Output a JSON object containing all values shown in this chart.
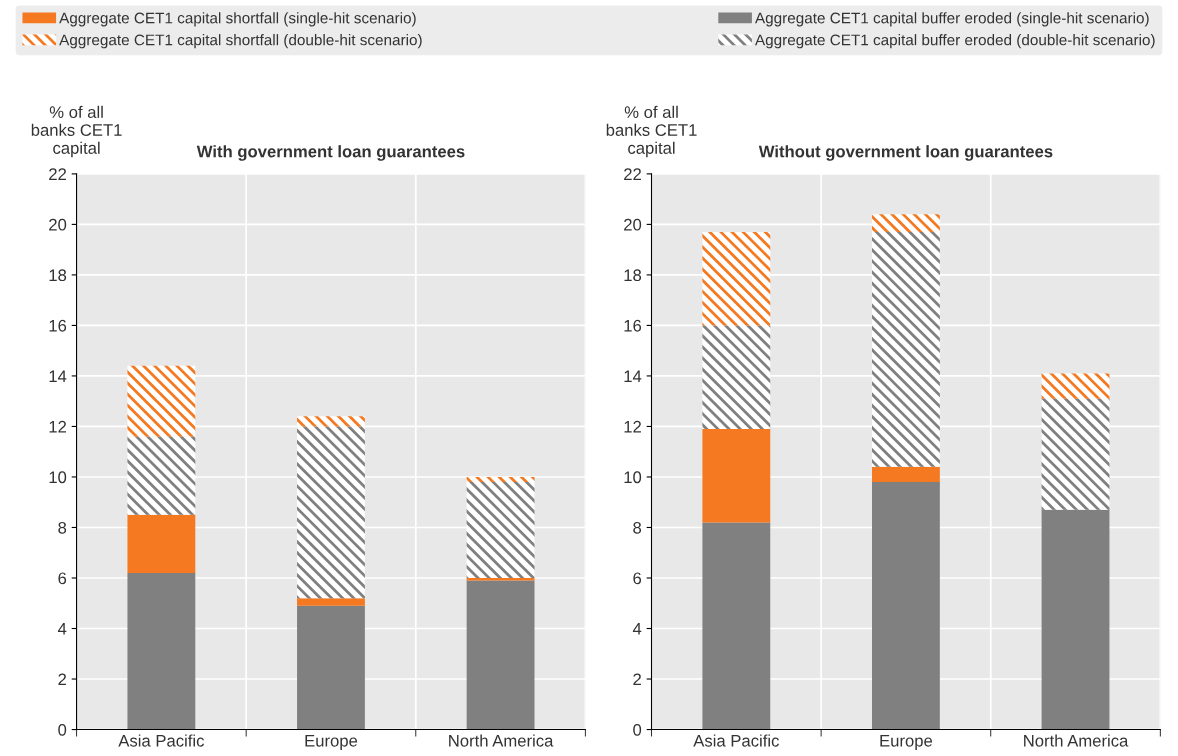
{
  "chart_data": [
    {
      "type": "bar",
      "stacked": true,
      "title": "With government loan guarantees",
      "ylabel": "% of all\nbanks CET1\ncapital",
      "categories": [
        "Asia Pacific",
        "Europe",
        "North America"
      ],
      "ylim": [
        0,
        22
      ],
      "yticks": [
        0,
        2,
        4,
        6,
        8,
        10,
        12,
        14,
        16,
        18,
        20,
        22
      ],
      "grid": true,
      "legend": "top",
      "series": [
        {
          "name": "Aggregate CET1 capital buffer eroded (single-hit scenario)",
          "color": "#808080",
          "values": [
            6.2,
            4.9,
            5.9
          ]
        },
        {
          "name": "Aggregate CET1 capital shortfall (single-hit scenario)",
          "color": "#f47920",
          "values": [
            2.3,
            0.3,
            0.1
          ]
        },
        {
          "name": "Aggregate CET1 capital buffer eroded (double-hit scenario)",
          "color": "#808080",
          "values": [
            3.1,
            6.8,
            3.8
          ]
        },
        {
          "name": "Aggregate CET1 capital shortfall (double-hit scenario)",
          "color": "#f47920",
          "values": [
            2.8,
            0.4,
            0.2
          ]
        }
      ]
    },
    {
      "type": "bar",
      "stacked": true,
      "title": "Without government loan guarantees",
      "ylabel": "% of all\nbanks CET1\ncapital",
      "categories": [
        "Asia Pacific",
        "Europe",
        "North America"
      ],
      "ylim": [
        0,
        22
      ],
      "yticks": [
        0,
        2,
        4,
        6,
        8,
        10,
        12,
        14,
        16,
        18,
        20,
        22
      ],
      "grid": true,
      "series": [
        {
          "color": "#808080",
          "values": [
            8.2,
            9.8,
            8.7
          ]
        },
        {
          "color": "#f47920",
          "values": [
            3.7,
            0.6,
            0
          ]
        },
        {
          "color": "#808080",
          "values": [
            4.1,
            9.3,
            4.4
          ]
        },
        {
          "color": "#f47920",
          "values": [
            3.7,
            0.7,
            1.0
          ]
        }
      ]
    }
  ]
}
